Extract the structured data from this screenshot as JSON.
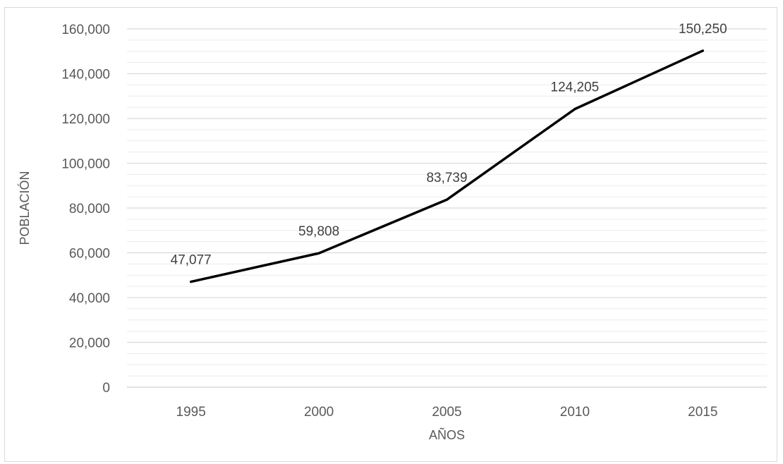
{
  "chart_data": {
    "type": "line",
    "title": "",
    "xlabel": "AÑOS",
    "ylabel": "POBLACIÓN",
    "categories": [
      "1995",
      "2000",
      "2005",
      "2010",
      "2015"
    ],
    "series": [
      {
        "values": [
          47077,
          59808,
          83739,
          124205,
          150250
        ],
        "color": "#000000"
      }
    ],
    "data_labels": [
      "47,077",
      "59,808",
      "83,739",
      "124,205",
      "150,250"
    ],
    "ylim": [
      0,
      160000
    ],
    "y_ticks": [
      0,
      20000,
      40000,
      60000,
      80000,
      100000,
      120000,
      140000,
      160000
    ],
    "y_tick_labels": [
      "0",
      "20,000",
      "40,000",
      "60,000",
      "80,000",
      "100,000",
      "120,000",
      "140,000",
      "160,000"
    ],
    "y_minor_step": 5000,
    "grid": true,
    "colors": {
      "major_grid": "#d9d9d9",
      "minor_grid": "#ececec",
      "frame": "#d9d9d9",
      "text": "#595959",
      "line": "#000000"
    }
  }
}
